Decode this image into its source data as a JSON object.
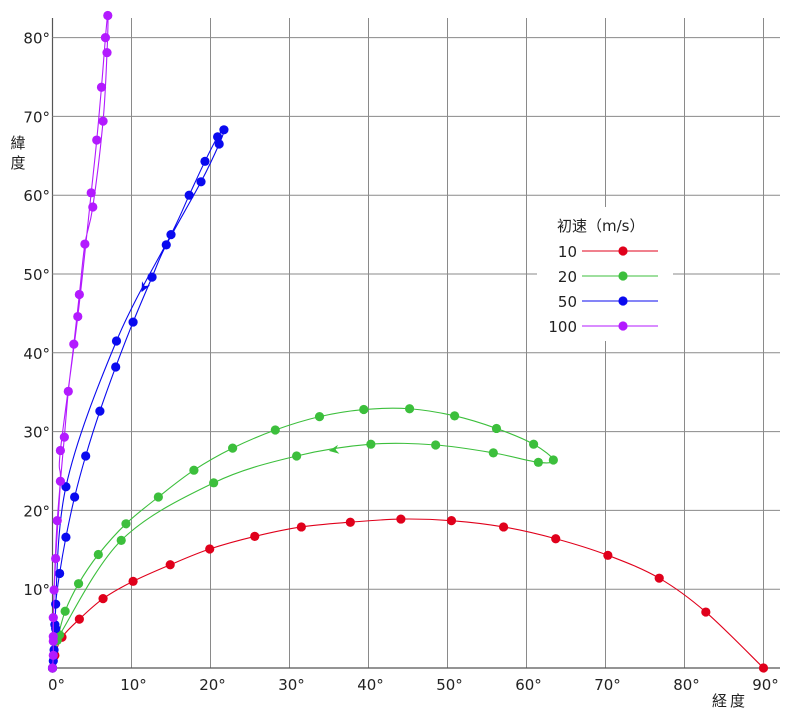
{
  "chart_data": {
    "type": "line",
    "title": "",
    "xlabel": "経度",
    "ylabel": "緯度",
    "xlim": [
      0,
      92
    ],
    "ylim": [
      0,
      83
    ],
    "grid": true,
    "xticks": [
      "0°",
      "10°",
      "20°",
      "30°",
      "40°",
      "50°",
      "60°",
      "70°",
      "80°",
      "90°"
    ],
    "xtick_values": [
      0,
      10,
      20,
      30,
      40,
      50,
      60,
      70,
      80,
      90
    ],
    "yticks": [
      "10°",
      "20°",
      "30°",
      "40°",
      "50°",
      "60°",
      "70°",
      "80°"
    ],
    "ytick_values": [
      10,
      20,
      30,
      40,
      50,
      60,
      70,
      80
    ],
    "legend": {
      "title": "初速（m/s）",
      "placement": "right"
    },
    "series": [
      {
        "name": "10",
        "color": "#e0001b",
        "points": [
          [
            0,
            0
          ],
          [
            0.3,
            1.6
          ],
          [
            1.2,
            3.9
          ],
          [
            3.4,
            6.2
          ],
          [
            6.4,
            8.8
          ],
          [
            10.2,
            11.0
          ],
          [
            14.9,
            13.1
          ],
          [
            19.9,
            15.1
          ],
          [
            25.6,
            16.7
          ],
          [
            31.5,
            17.9
          ],
          [
            37.7,
            18.5
          ],
          [
            44.1,
            18.9
          ],
          [
            50.5,
            18.7
          ],
          [
            57.1,
            17.9
          ],
          [
            63.7,
            16.4
          ],
          [
            70.3,
            14.3
          ],
          [
            76.8,
            11.4
          ],
          [
            82.7,
            7.1
          ],
          [
            90.0,
            0
          ]
        ]
      },
      {
        "name": "20",
        "color": "#3cbf3c",
        "return_arrow": true,
        "points": [
          [
            0,
            0
          ],
          [
            0.6,
            3.5
          ],
          [
            1.6,
            7.2
          ],
          [
            3.3,
            10.7
          ],
          [
            5.8,
            14.4
          ],
          [
            9.3,
            18.3
          ],
          [
            13.4,
            21.7
          ],
          [
            17.9,
            25.1
          ],
          [
            22.8,
            27.9
          ],
          [
            28.2,
            30.2
          ],
          [
            33.8,
            31.9
          ],
          [
            39.4,
            32.8
          ],
          [
            45.2,
            32.9
          ],
          [
            50.9,
            32.0
          ],
          [
            56.2,
            30.4
          ],
          [
            60.9,
            28.4
          ],
          [
            63.4,
            26.4
          ],
          [
            61.5,
            26.1
          ],
          [
            55.8,
            27.3
          ],
          [
            48.5,
            28.3
          ],
          [
            40.3,
            28.4
          ],
          [
            30.9,
            26.9
          ],
          [
            20.4,
            23.5
          ],
          [
            8.7,
            16.2
          ],
          [
            0.9,
            4.2
          ]
        ]
      },
      {
        "name": "50",
        "color": "#0a0aef",
        "return_arrow": true,
        "points": [
          [
            0,
            0
          ],
          [
            0.2,
            2.3
          ],
          [
            0.4,
            5.0
          ],
          [
            0.4,
            8.1
          ],
          [
            0.9,
            12.0
          ],
          [
            1.7,
            16.6
          ],
          [
            2.8,
            21.7
          ],
          [
            4.2,
            26.9
          ],
          [
            6.0,
            32.6
          ],
          [
            8.0,
            38.2
          ],
          [
            10.2,
            43.9
          ],
          [
            12.6,
            49.6
          ],
          [
            14.4,
            53.7
          ],
          [
            18.8,
            61.7
          ],
          [
            21.1,
            66.5
          ],
          [
            21.7,
            68.3
          ],
          [
            20.9,
            67.4
          ],
          [
            19.3,
            64.3
          ],
          [
            17.3,
            60.0
          ],
          [
            15.0,
            55.0
          ],
          [
            8.1,
            41.5
          ],
          [
            1.7,
            23.0
          ],
          [
            0.3,
            5.5
          ],
          [
            0.1,
            0.9
          ]
        ]
      },
      {
        "name": "100",
        "color": "#b31aff",
        "points": [
          [
            0,
            0
          ],
          [
            0.1,
            1.6
          ],
          [
            0.1,
            4.0
          ],
          [
            0.2,
            9.9
          ],
          [
            0.6,
            18.7
          ],
          [
            1.5,
            29.3
          ],
          [
            2.0,
            35.1
          ],
          [
            2.7,
            41.1
          ],
          [
            3.4,
            47.4
          ],
          [
            4.1,
            53.8
          ],
          [
            5.1,
            58.5
          ],
          [
            6.4,
            69.4
          ],
          [
            6.9,
            78.1
          ],
          [
            7.0,
            82.8
          ],
          [
            6.7,
            80.0
          ],
          [
            6.2,
            73.7
          ],
          [
            5.6,
            67.0
          ],
          [
            4.9,
            60.3
          ],
          [
            3.2,
            44.6
          ],
          [
            1.0,
            27.6
          ],
          [
            1.0,
            23.7
          ],
          [
            0.4,
            13.9
          ],
          [
            0.1,
            6.4
          ],
          [
            0.1,
            3.4
          ]
        ]
      }
    ]
  }
}
